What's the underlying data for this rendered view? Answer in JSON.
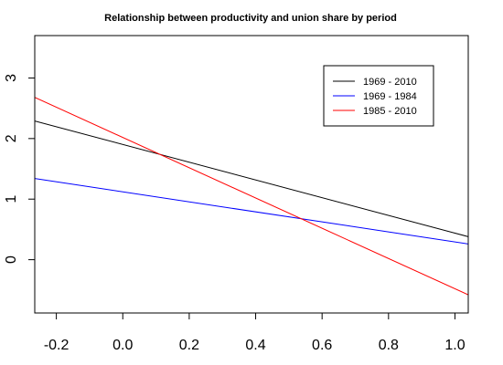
{
  "chart_data": {
    "type": "line",
    "title": "Relationship between productivity and union share by period",
    "xlabel": "",
    "ylabel": "",
    "xlim": [
      -0.265,
      1.04
    ],
    "ylim": [
      -0.88,
      3.7
    ],
    "x_ticks": [
      -0.2,
      0.0,
      0.2,
      0.4,
      0.6,
      0.8,
      1.0
    ],
    "x_tick_labels": [
      "-0.2",
      "0.0",
      "0.2",
      "0.4",
      "0.6",
      "0.8",
      "1.0"
    ],
    "y_ticks": [
      0,
      1,
      2,
      3
    ],
    "y_tick_labels": [
      "0",
      "1",
      "2",
      "3"
    ],
    "grid": false,
    "legend_position": "top-right",
    "series": [
      {
        "name": "1969 - 2010",
        "color": "#000000",
        "x": [
          -0.265,
          1.04
        ],
        "y": [
          2.29,
          0.38
        ]
      },
      {
        "name": "1969 - 1984",
        "color": "#0000ff",
        "x": [
          -0.265,
          1.04
        ],
        "y": [
          1.34,
          0.26
        ]
      },
      {
        "name": "1985 - 2010",
        "color": "#ff0000",
        "x": [
          -0.265,
          1.04
        ],
        "y": [
          2.68,
          -0.58
        ]
      }
    ]
  }
}
